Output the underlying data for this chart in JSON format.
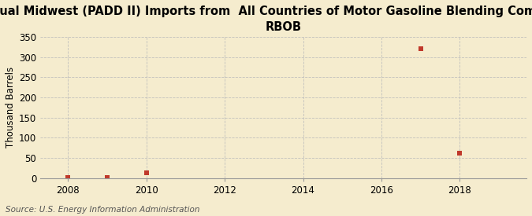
{
  "title_line1": "Annual Midwest (PADD II) Imports from  All Countries of Motor Gasoline Blending Components,",
  "title_line2": "RBOB",
  "ylabel": "Thousand Barrels",
  "source": "Source: U.S. Energy Information Administration",
  "background_color": "#f5ecce",
  "plot_background_color": "#f5ecce",
  "x_data": [
    2008,
    2009,
    2010,
    2017,
    2018
  ],
  "y_data": [
    2,
    2,
    13,
    320,
    62
  ],
  "marker_color": "#c0392b",
  "marker_size": 4,
  "xlim": [
    2007.3,
    2019.7
  ],
  "ylim": [
    0,
    350
  ],
  "yticks": [
    0,
    50,
    100,
    150,
    200,
    250,
    300,
    350
  ],
  "xticks": [
    2008,
    2010,
    2012,
    2014,
    2016,
    2018
  ],
  "title_fontsize": 10.5,
  "axis_fontsize": 8.5,
  "source_fontsize": 7.5,
  "grid_color": "#bbbbbb",
  "grid_alpha": 0.9,
  "spine_color": "#999999"
}
